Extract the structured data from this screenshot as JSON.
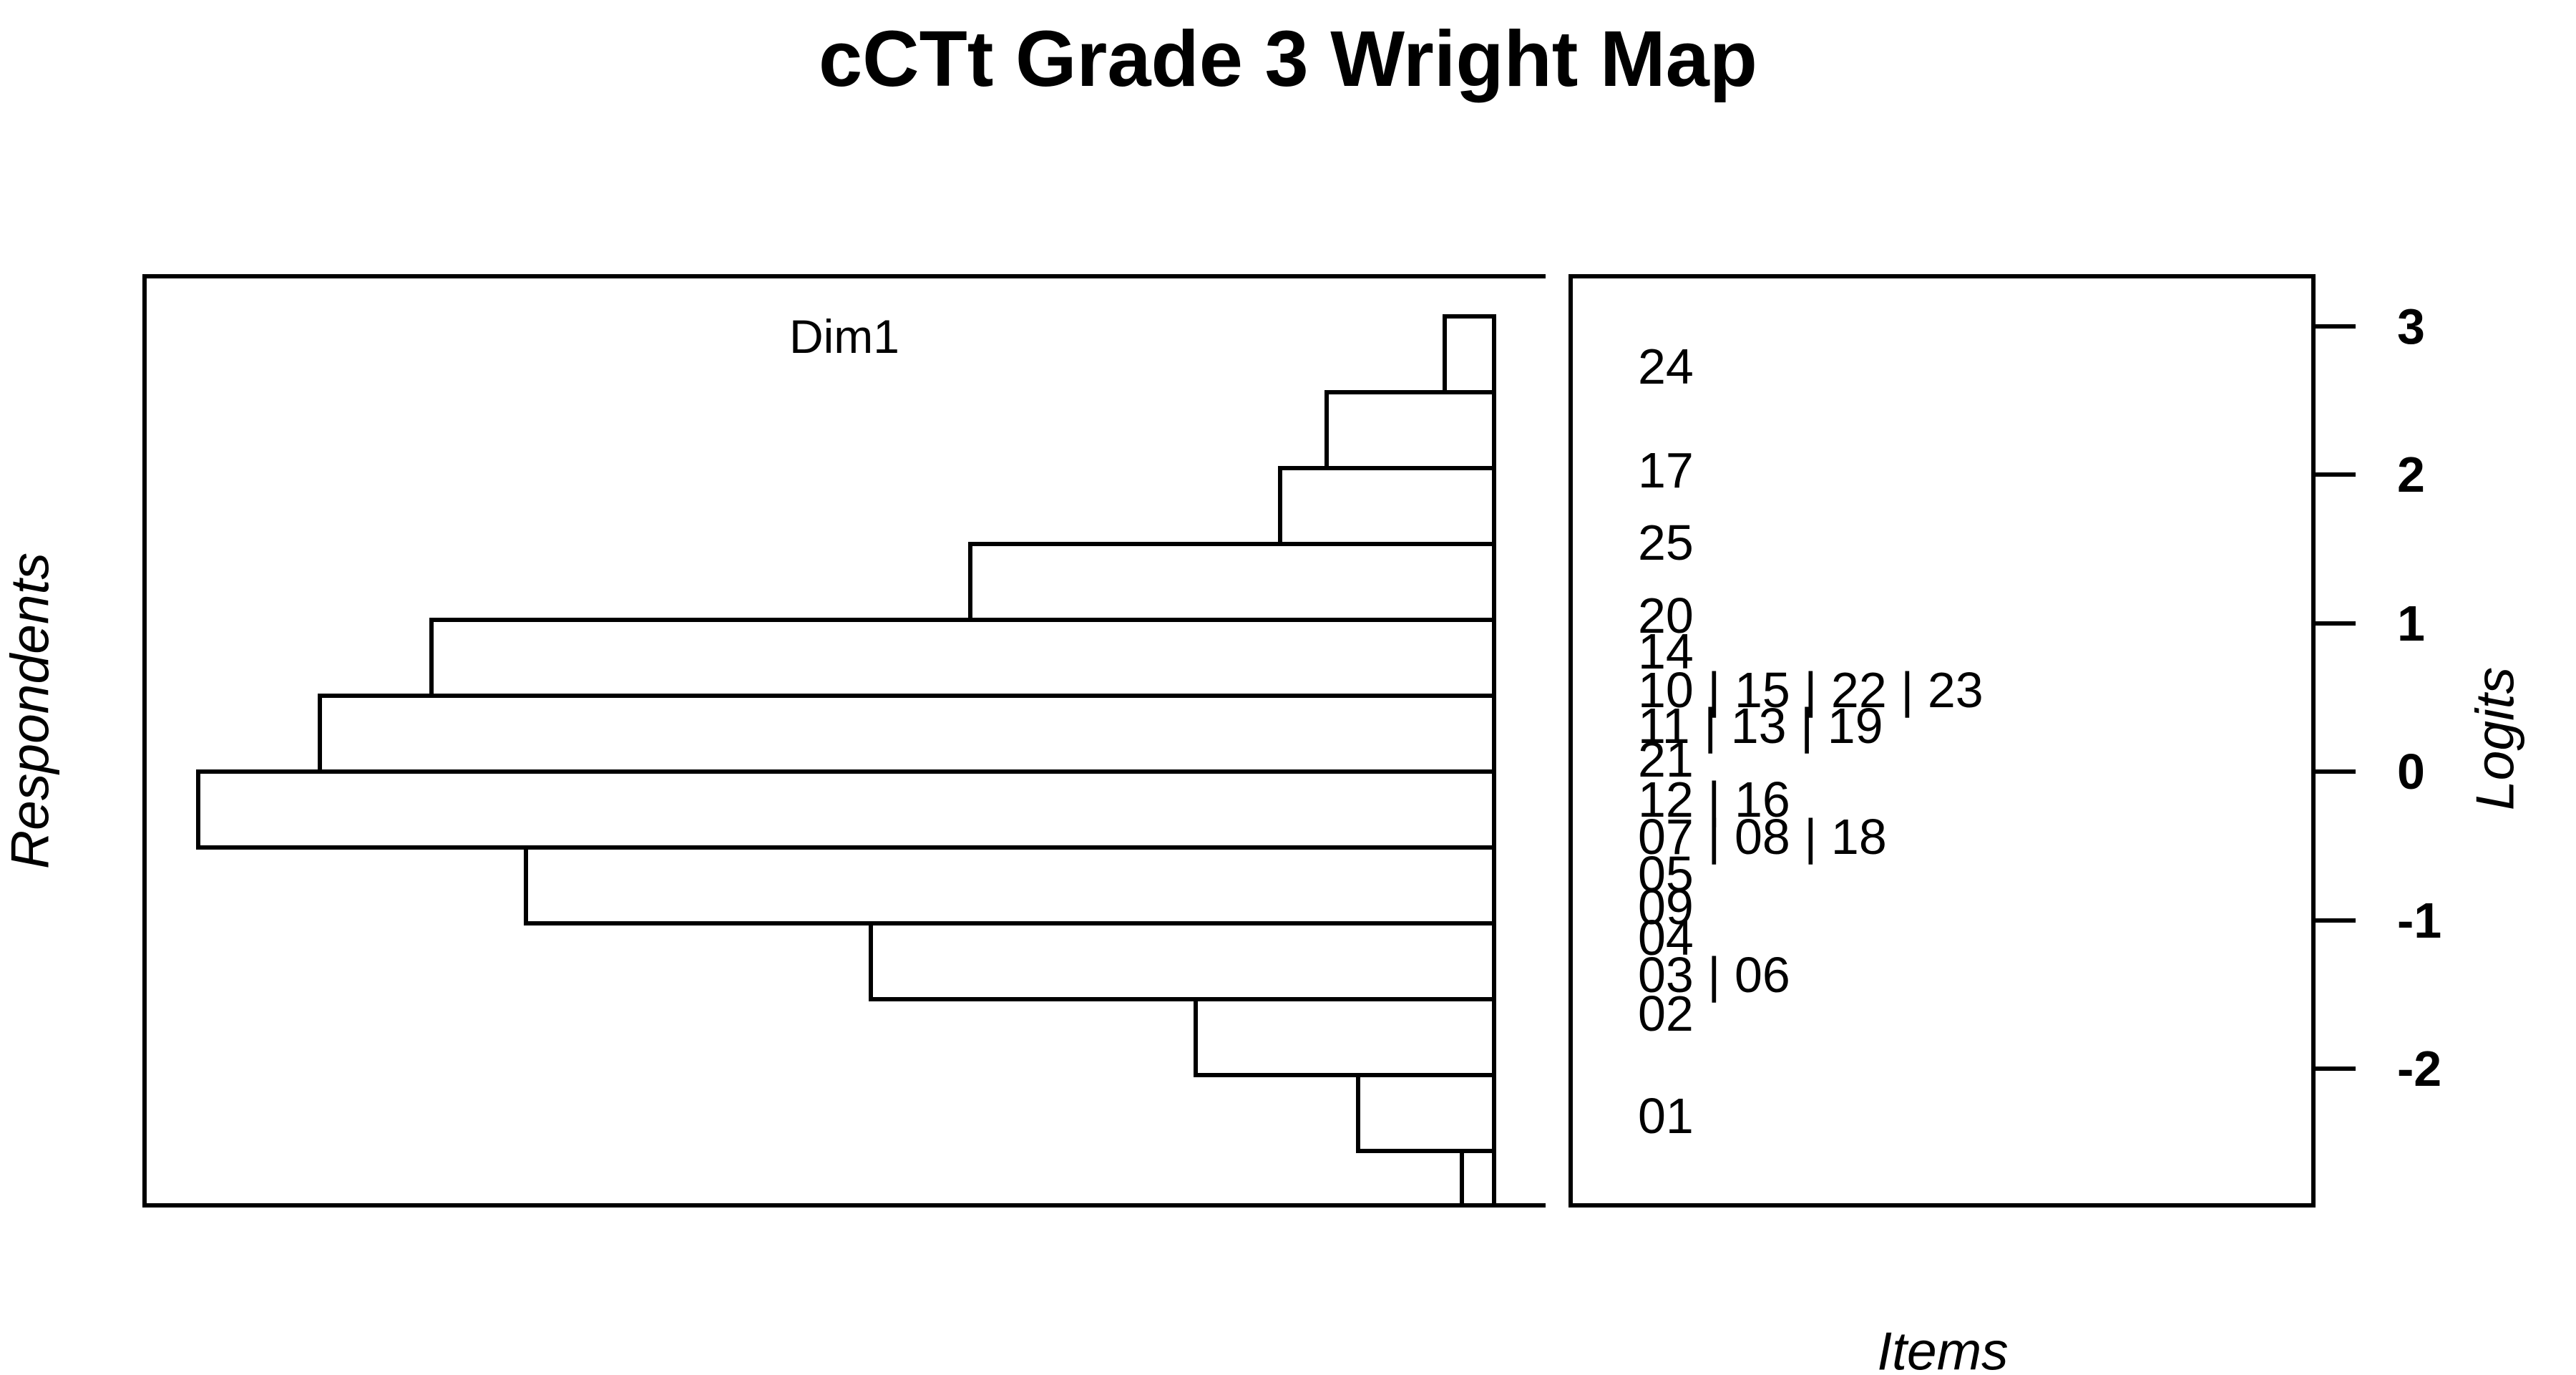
{
  "page": {
    "background": "#ffffff",
    "ink": "#000000"
  },
  "title": "cCTt Grade 3 Wright Map",
  "left_panel": {
    "dim_label": "Dim1",
    "side_label": "Respondents"
  },
  "right_panel": {
    "side_label": "Logits",
    "bottom_label": "Items"
  },
  "chart_data": {
    "type": "bar",
    "subtype": "wright-map: left panel is a horizontal histogram of respondent abilities (Dim1), right panel shows item difficulty locations on a shared vertical logit scale",
    "title": "cCTt Grade 3 Wright Map",
    "ylabel_left": "Respondents",
    "ylabel_right": "Logits",
    "xlabel_items": "Items",
    "axis": {
      "label": "Logits",
      "side": "right",
      "tick_values": [
        3,
        2,
        1,
        0,
        -1,
        -2
      ],
      "range": [
        -3.0,
        3.35
      ],
      "grid": false
    },
    "person_histogram": {
      "dimension": "Dim1",
      "bin_width_logits": 0.5,
      "orientation": "bars extend leftward from the zero line, aligned to the logit scale",
      "bins": [
        {
          "logit_from": 2.5,
          "logit_to": 3.0,
          "rel_count": 0.038
        },
        {
          "logit_from": 2.0,
          "logit_to": 2.5,
          "rel_count": 0.129
        },
        {
          "logit_from": 1.5,
          "logit_to": 2.0,
          "rel_count": 0.165
        },
        {
          "logit_from": 1.0,
          "logit_to": 1.5,
          "rel_count": 0.404
        },
        {
          "logit_from": 0.5,
          "logit_to": 1.0,
          "rel_count": 0.82
        },
        {
          "logit_from": 0.0,
          "logit_to": 0.5,
          "rel_count": 0.906
        },
        {
          "logit_from": -0.5,
          "logit_to": 0.0,
          "rel_count": 1.0
        },
        {
          "logit_from": -1.0,
          "logit_to": -0.5,
          "rel_count": 0.747
        },
        {
          "logit_from": -1.5,
          "logit_to": -1.0,
          "rel_count": 0.481
        },
        {
          "logit_from": -2.0,
          "logit_to": -1.5,
          "rel_count": 0.23
        },
        {
          "logit_from": -2.5,
          "logit_to": -2.0,
          "rel_count": 0.105
        },
        {
          "logit_from": -3.0,
          "logit_to": -2.5,
          "rel_count": 0.025
        }
      ]
    },
    "items": [
      {
        "label": "24",
        "logit": 2.73
      },
      {
        "label": "17",
        "logit": 2.03
      },
      {
        "label": "25",
        "logit": 1.54
      },
      {
        "label": "20",
        "logit": 1.05
      },
      {
        "label": "14",
        "logit": 0.81
      },
      {
        "label": "10 | 15 | 22 | 23",
        "logit": 0.55
      },
      {
        "label": "11 | 13 | 19",
        "logit": 0.31
      },
      {
        "label": "21",
        "logit": 0.08
      },
      {
        "label": "12 | 16",
        "logit": -0.19
      },
      {
        "label": "07 | 08 | 18",
        "logit": -0.44
      },
      {
        "label": "05",
        "logit": -0.69
      },
      {
        "label": "09",
        "logit": -0.91
      },
      {
        "label": "04",
        "logit": -1.12
      },
      {
        "label": "03 | 06",
        "logit": -1.37
      },
      {
        "label": "02",
        "logit": -1.63
      },
      {
        "label": "01",
        "logit": -2.32
      }
    ]
  }
}
